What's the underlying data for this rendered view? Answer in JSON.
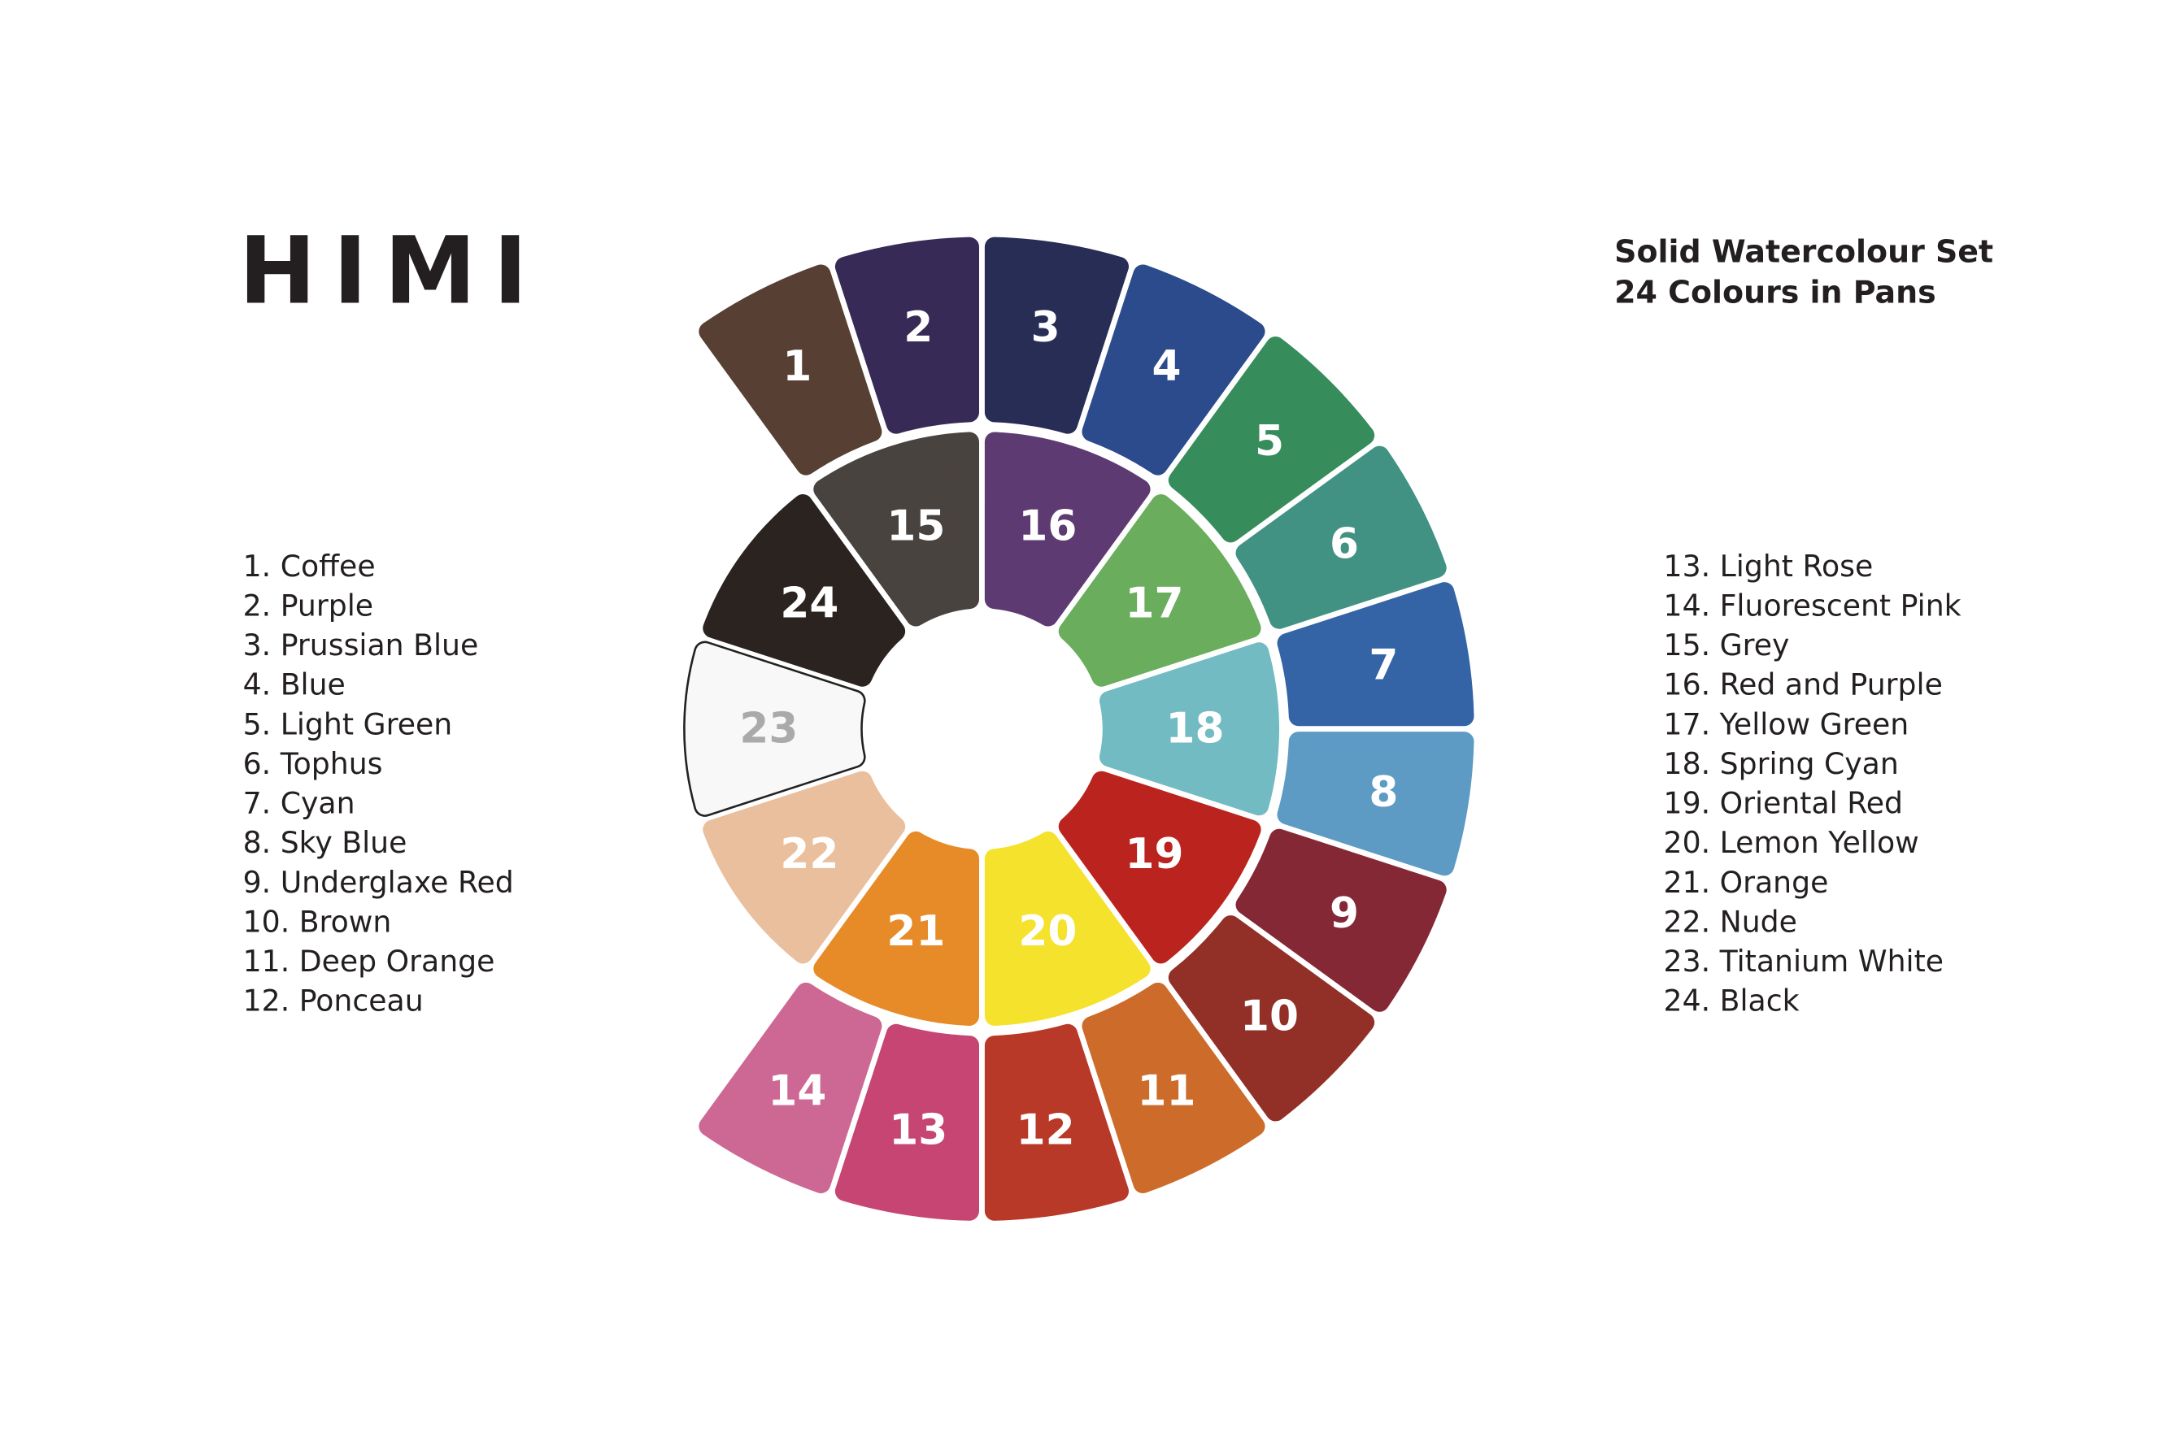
{
  "brand": "HIMI",
  "title": [
    "Solid Watercolour Set",
    "24 Colours in Pans"
  ],
  "legend": [
    "1. Coffee",
    "2. Purple",
    "3. Prussian Blue",
    "4. Blue",
    "5. Light Green",
    "6. Tophus",
    "7. Cyan",
    "8. Sky Blue",
    "9. Underglaxe Red",
    "10. Brown",
    "11. Deep Orange",
    "12. Ponceau",
    "13. Light Rose",
    "14. Fluorescent Pink",
    "15. Grey",
    "16. Red and Purple",
    "17. Yellow Green",
    "18. Spring Cyan",
    "19. Oriental Red",
    "20. Lemon Yellow",
    "21. Orange",
    "22. Nude",
    "23. Titanium White",
    "24. Black"
  ],
  "swatches": [
    {
      "number": "1",
      "color": "#573f33"
    },
    {
      "number": "2",
      "color": "#372a57"
    },
    {
      "number": "3",
      "color": "#272d55"
    },
    {
      "number": "4",
      "color": "#2b4b8c"
    },
    {
      "number": "5",
      "color": "#368c5a"
    },
    {
      "number": "6",
      "color": "#419283"
    },
    {
      "number": "7",
      "color": "#3463a6"
    },
    {
      "number": "8",
      "color": "#5d9bc5"
    },
    {
      "number": "9",
      "color": "#842836"
    },
    {
      "number": "10",
      "color": "#923028"
    },
    {
      "number": "11",
      "color": "#cd6b2b"
    },
    {
      "number": "12",
      "color": "#b83927"
    },
    {
      "number": "13",
      "color": "#c64572"
    },
    {
      "number": "14",
      "color": "#cd6894"
    },
    {
      "number": "15",
      "color": "#49433f"
    },
    {
      "number": "16",
      "color": "#5e3a72"
    },
    {
      "number": "17",
      "color": "#6aad5d"
    },
    {
      "number": "18",
      "color": "#72bbc3"
    },
    {
      "number": "19",
      "color": "#bb231f"
    },
    {
      "number": "20",
      "color": "#f4e22c"
    },
    {
      "number": "21",
      "color": "#e68b28"
    },
    {
      "number": "22",
      "color": "#e9bf9e"
    },
    {
      "number": "23",
      "color": "#f8f8f8"
    },
    {
      "number": "24",
      "color": "#2b231f"
    }
  ]
}
